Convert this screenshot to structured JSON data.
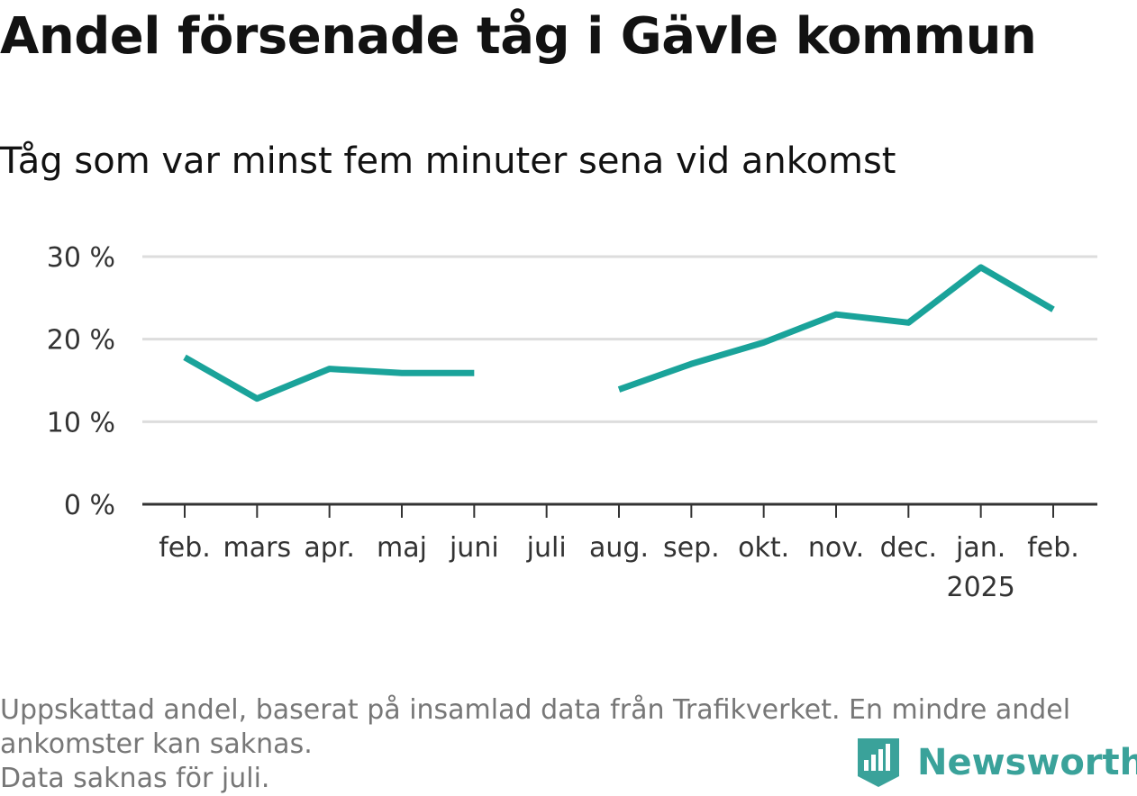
{
  "header": {
    "title": "Andel försenade tåg i Gävle kommun",
    "subtitle": "Tåg som var minst fem minuter sena vid ankomst"
  },
  "footer": {
    "note_line1": "Uppskattad andel, baserat på insamlad data från Trafikverket. En mindre andel",
    "note_line2": "ankomster kan saknas.",
    "note_line3": "Data saknas för juli.",
    "brand": "Newsworthy"
  },
  "colors": {
    "line": "#1aa39a",
    "grid": "#dddddd",
    "axis": "#333333",
    "brand": "#3aa29a"
  },
  "chart_data": {
    "type": "line",
    "title": "Andel försenade tåg i Gävle kommun",
    "subtitle": "Tåg som var minst fem minuter sena vid ankomst",
    "categories": [
      "feb.",
      "mars",
      "apr.",
      "maj",
      "juni",
      "juli",
      "aug.",
      "sep.",
      "okt.",
      "nov.",
      "dec.",
      "jan.",
      "feb."
    ],
    "year_label": {
      "under": "jan.",
      "text": "2025"
    },
    "series": [
      {
        "values": [
          17.8,
          12.8,
          16.4,
          15.9,
          15.9,
          null,
          13.9,
          17.0,
          19.6,
          23.0,
          22.0,
          28.7,
          23.6
        ]
      }
    ],
    "ylim": [
      0,
      30
    ],
    "yticks": [
      0,
      10,
      20,
      30
    ],
    "ytick_labels": [
      "0 %",
      "10 %",
      "20 %",
      "30 %"
    ],
    "grid": true,
    "xlabel": "",
    "ylabel": ""
  }
}
